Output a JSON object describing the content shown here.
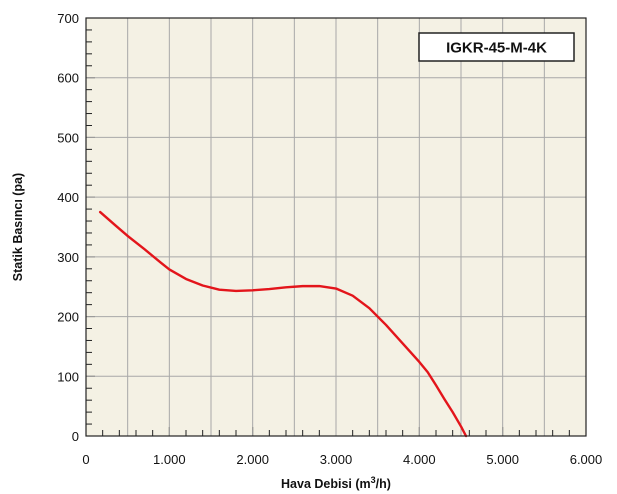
{
  "chart_data": {
    "type": "line",
    "title": "",
    "xlabel": "Hava Debisi (m",
    "xlabel_sup": "3",
    "xlabel_tail": "/h)",
    "ylabel": "Statik Basıncı (pa)",
    "xlim": [
      0,
      6000
    ],
    "ylim": [
      0,
      700
    ],
    "x_ticks": [
      0,
      1000,
      2000,
      3000,
      4000,
      5000,
      6000
    ],
    "x_tick_labels": [
      "0",
      "1.000",
      "2.000",
      "3.000",
      "4.000",
      "5.000",
      "6.000"
    ],
    "y_ticks": [
      0,
      100,
      200,
      300,
      400,
      500,
      600,
      700
    ],
    "y_tick_labels": [
      "0",
      "100",
      "200",
      "300",
      "400",
      "500",
      "600",
      "700"
    ],
    "x_minor_step": 200,
    "y_minor_step": 20,
    "grid": true,
    "plot_background": "#f4f1e4",
    "grid_color": "#a8a8a8",
    "legend_position": "top-right",
    "series": [
      {
        "name": "IGKR-45-M-4K",
        "color": "#e3151b",
        "x": [
          170,
          350,
          500,
          700,
          900,
          1000,
          1200,
          1400,
          1600,
          1800,
          2000,
          2200,
          2400,
          2600,
          2800,
          3000,
          3200,
          3400,
          3600,
          3800,
          4000,
          4100,
          4200,
          4300,
          4400,
          4500,
          4560
        ],
        "y": [
          375,
          353,
          335,
          313,
          290,
          279,
          263,
          252,
          245,
          243,
          244,
          246,
          249,
          251,
          251,
          247,
          235,
          214,
          186,
          155,
          124,
          107,
          85,
          62,
          40,
          16,
          0
        ]
      }
    ]
  }
}
